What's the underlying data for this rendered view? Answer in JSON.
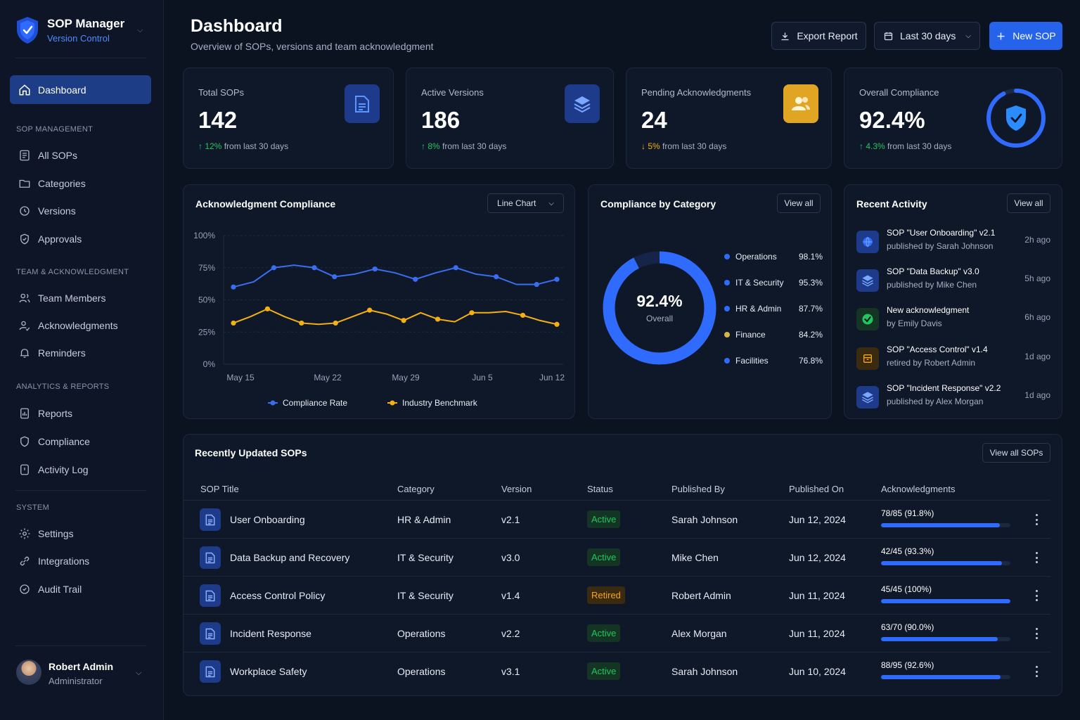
{
  "brand": {
    "name": "SOP Manager",
    "subtitle": "Version Control"
  },
  "nav": {
    "dashboard": "Dashboard",
    "section_sop": "SOP MANAGEMENT",
    "all_sops": "All SOPs",
    "categories": "Categories",
    "versions": "Versions",
    "approvals": "Approvals",
    "section_team": "TEAM & ACKNOWLEDGMENT",
    "team_members": "Team Members",
    "acknowledgments": "Acknowledgments",
    "reminders": "Reminders",
    "section_analytics": "ANALYTICS & REPORTS",
    "reports": "Reports",
    "compliance": "Compliance",
    "activity_log": "Activity Log",
    "section_system": "SYSTEM",
    "settings": "Settings",
    "integrations": "Integrations",
    "audit_trail": "Audit Trail"
  },
  "user": {
    "name": "Robert Admin",
    "role": "Administrator"
  },
  "header": {
    "title": "Dashboard",
    "subtitle": "Overview of SOPs, versions and team acknowledgment",
    "export_label": "Export Report",
    "range_label": "Last 30 days",
    "new_label": "New SOP"
  },
  "stats": [
    {
      "label": "Total SOPs",
      "value": "142",
      "delta": "12%",
      "delta_text": "from last 30 days",
      "direction": "up",
      "icon": "document-icon"
    },
    {
      "label": "Active Versions",
      "value": "186",
      "delta": "8%",
      "delta_text": "from last 30 days",
      "direction": "up",
      "icon": "layers-icon"
    },
    {
      "label": "Pending Acknowledgments",
      "value": "24",
      "delta": "5%",
      "delta_text": "from last 30 days",
      "direction": "down",
      "icon": "users-icon"
    },
    {
      "label": "Overall Compliance",
      "value": "92.4%",
      "delta": "4.3%",
      "delta_text": "from last 30 days",
      "direction": "up",
      "icon": "shield-check-icon",
      "progress": 0.924
    }
  ],
  "ack_chart": {
    "title": "Acknowledgment Compliance",
    "type_label": "Line Chart"
  },
  "chart_data": {
    "type": "line",
    "title": "Acknowledgment Compliance",
    "xlabel": "",
    "ylabel": "",
    "x_ticks": [
      "May 15",
      "May 22",
      "May 29",
      "Jun 5",
      "Jun 12"
    ],
    "y_ticks": [
      "100%",
      "75%",
      "50%",
      "25%",
      "0%"
    ],
    "ylim": [
      0,
      100
    ],
    "grid": true,
    "legend_position": "bottom",
    "series": [
      {
        "name": "Compliance Rate",
        "color": "#3b6df0",
        "values": [
          60,
          64,
          75,
          77,
          75,
          68,
          70,
          74,
          71,
          66,
          71,
          75,
          70,
          68,
          62,
          62,
          66
        ]
      },
      {
        "name": "Industry Benchmark",
        "color": "#f5b014",
        "values": [
          32,
          37,
          43,
          37,
          32,
          31,
          32,
          37,
          42,
          39,
          34,
          40,
          35,
          33,
          40,
          40,
          41,
          38,
          34,
          31
        ]
      }
    ]
  },
  "category": {
    "title": "Compliance by Category",
    "view_all": "View all",
    "center_value": "92.4%",
    "center_label": "Overall",
    "progress": 0.924,
    "items": [
      {
        "name": "Operations",
        "pct": "98.1%",
        "color": "#2f6bff"
      },
      {
        "name": "IT & Security",
        "pct": "95.3%",
        "color": "#2f6bff"
      },
      {
        "name": "HR & Admin",
        "pct": "87.7%",
        "color": "#2f6bff"
      },
      {
        "name": "Finance",
        "pct": "84.2%",
        "color": "#d4b54a"
      },
      {
        "name": "Facilities",
        "pct": "76.8%",
        "color": "#2f6bff"
      }
    ]
  },
  "activity": {
    "title": "Recent Activity",
    "view_all": "View all",
    "items": [
      {
        "title": "SOP \"User Onboarding\" v2.1",
        "sub": "published by Sarah Johnson",
        "time": "2h ago",
        "icon": "globe-icon",
        "color": "#1e3a8a"
      },
      {
        "title": "SOP \"Data Backup\" v3.0",
        "sub": "published by Mike Chen",
        "time": "5h ago",
        "icon": "layers-icon",
        "color": "#1e3a8a"
      },
      {
        "title": "New acknowledgment",
        "sub": "by Emily Davis",
        "time": "6h ago",
        "icon": "check-circle-icon",
        "color": "#143524"
      },
      {
        "title": "SOP \"Access Control\" v1.4",
        "sub": "retired by Robert Admin",
        "time": "1d ago",
        "icon": "archive-icon",
        "color": "#3a2a10"
      },
      {
        "title": "SOP \"Incident Response\" v2.2",
        "sub": "published by Alex Morgan",
        "time": "1d ago",
        "icon": "layers-icon",
        "color": "#1e3a8a"
      }
    ]
  },
  "table": {
    "title": "Recently Updated SOPs",
    "view_all": "View all SOPs",
    "columns": [
      "SOP Title",
      "Category",
      "Version",
      "Status",
      "Published By",
      "Published On",
      "Acknowledgments"
    ],
    "rows": [
      {
        "title": "User Onboarding",
        "category": "HR & Admin",
        "version": "v2.1",
        "status": "Active",
        "by": "Sarah Johnson",
        "on": "Jun 12, 2024",
        "ack": "78/85 (91.8%)",
        "ack_fraction": 0.918
      },
      {
        "title": "Data Backup and Recovery",
        "category": "IT & Security",
        "version": "v3.0",
        "status": "Active",
        "by": "Mike Chen",
        "on": "Jun 12, 2024",
        "ack": "42/45 (93.3%)",
        "ack_fraction": 0.933
      },
      {
        "title": "Access Control Policy",
        "category": "IT & Security",
        "version": "v1.4",
        "status": "Retired",
        "by": "Robert Admin",
        "on": "Jun 11, 2024",
        "ack": "45/45 (100%)",
        "ack_fraction": 1.0
      },
      {
        "title": "Incident Response",
        "category": "Operations",
        "version": "v2.2",
        "status": "Active",
        "by": "Alex Morgan",
        "on": "Jun 11, 2024",
        "ack": "63/70 (90.0%)",
        "ack_fraction": 0.9
      },
      {
        "title": "Workplace Safety",
        "category": "Operations",
        "version": "v3.1",
        "status": "Active",
        "by": "Sarah Johnson",
        "on": "Jun 10, 2024",
        "ack": "88/95 (92.6%)",
        "ack_fraction": 0.926
      }
    ]
  }
}
